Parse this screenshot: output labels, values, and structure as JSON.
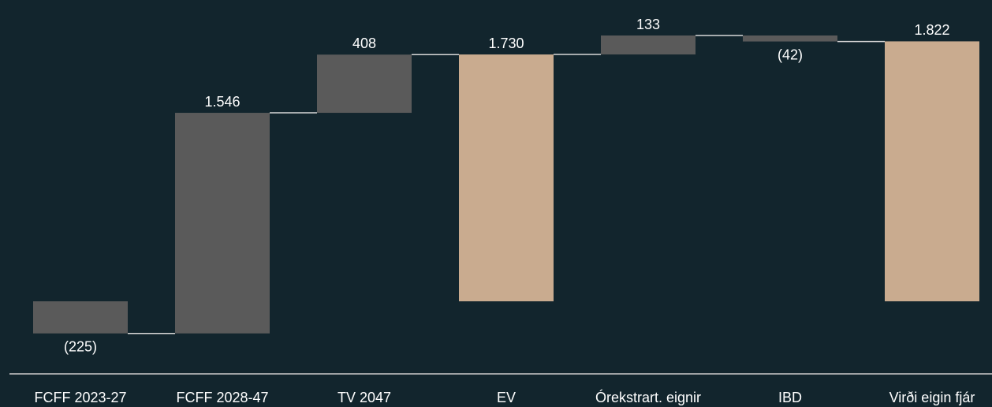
{
  "chart_data": {
    "type": "waterfall",
    "categories": [
      "FCFF 2023-27",
      "FCFF 2028-47",
      "TV 2047",
      "EV",
      "Órekstrart. eignir",
      "IBD",
      "Virði eigin fjár"
    ],
    "values": [
      -225,
      1546,
      408,
      1730,
      133,
      -42,
      1822
    ],
    "value_labels": [
      "(225)",
      "1.546",
      "408",
      "1.730",
      "133",
      "(42)",
      "1.822"
    ],
    "totals": [
      false,
      false,
      false,
      true,
      false,
      false,
      true
    ],
    "color": "#5a5a5a",
    "total_color": "#c9ab8f"
  }
}
